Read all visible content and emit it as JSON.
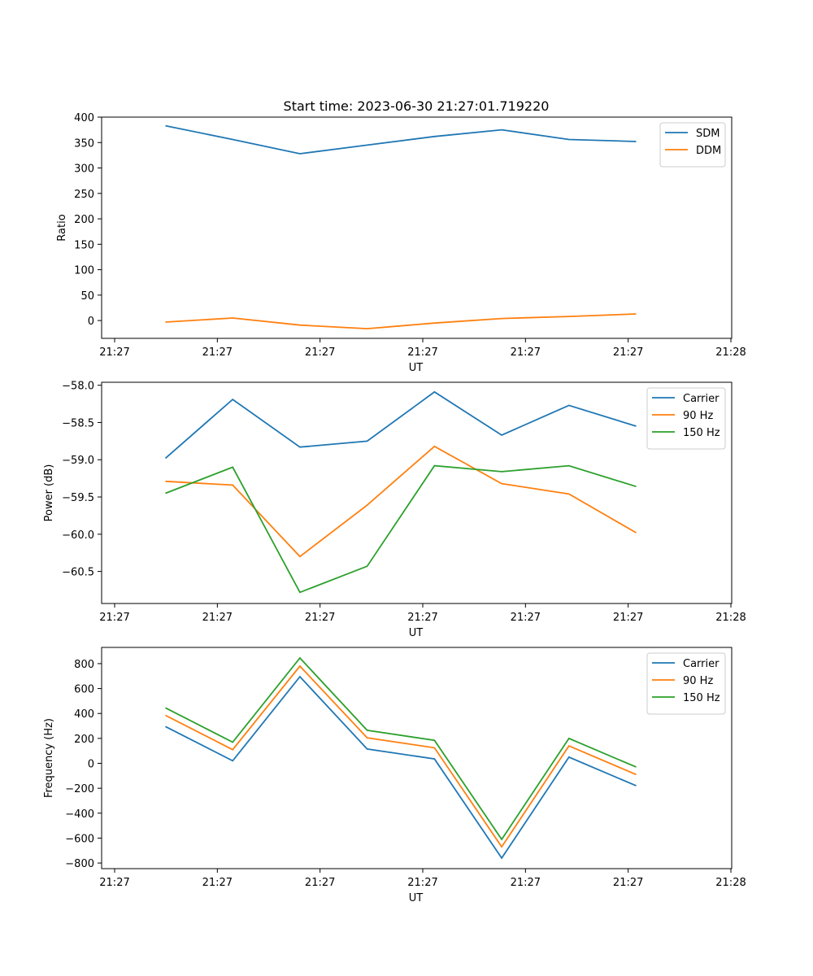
{
  "figure_title": "Start time: 2023-06-30 21:27:01.719220",
  "colors": {
    "blue": "#1f77b4",
    "orange": "#ff7f0e",
    "green": "#2ca02c"
  },
  "chart_data": [
    {
      "type": "line",
      "xlabel": "UT",
      "ylabel": "Ratio",
      "x_tick_labels": [
        "21:27",
        "21:27",
        "21:27",
        "21:27",
        "21:27",
        "21:27",
        "21:27"
      ],
      "x_tick_extra": "21:28",
      "x": [
        1,
        2,
        3,
        4,
        5,
        6,
        7,
        8
      ],
      "ylim": [
        -35,
        400
      ],
      "yticks": [
        0,
        50,
        100,
        150,
        200,
        250,
        300,
        350,
        400
      ],
      "legend_position": "top-right",
      "series": [
        {
          "name": "SDM",
          "color": "#1f77b4",
          "values": [
            383,
            356,
            328,
            345,
            362,
            375,
            356,
            352
          ]
        },
        {
          "name": "DDM",
          "color": "#ff7f0e",
          "values": [
            -3,
            5,
            -9,
            -16,
            -5,
            4,
            8,
            13
          ]
        }
      ]
    },
    {
      "type": "line",
      "xlabel": "UT",
      "ylabel": "Power (dB)",
      "x_tick_labels": [
        "21:27",
        "21:27",
        "21:27",
        "21:27",
        "21:27",
        "21:27",
        "21:27"
      ],
      "x_tick_extra": "21:28",
      "x": [
        1,
        2,
        3,
        4,
        5,
        6,
        7,
        8
      ],
      "ylim": [
        -60.93,
        -57.96
      ],
      "yticks": [
        -58.0,
        -58.5,
        -59.0,
        -59.5,
        -60.0,
        -60.5
      ],
      "yticks_labels": [
        "−58.0",
        "−58.5",
        "−59.0",
        "−59.5",
        "−60.0",
        "−60.5"
      ],
      "legend_position": "top-right",
      "series": [
        {
          "name": "Carrier",
          "color": "#1f77b4",
          "values": [
            -58.98,
            -58.19,
            -58.83,
            -58.75,
            -58.09,
            -58.67,
            -58.27,
            -58.55
          ]
        },
        {
          "name": "90 Hz",
          "color": "#ff7f0e",
          "values": [
            -59.29,
            -59.34,
            -60.3,
            -59.61,
            -58.82,
            -59.32,
            -59.46,
            -59.98
          ]
        },
        {
          "name": "150 Hz",
          "color": "#2ca02c",
          "values": [
            -59.45,
            -59.1,
            -60.78,
            -60.43,
            -59.08,
            -59.16,
            -59.08,
            -59.36
          ]
        }
      ]
    },
    {
      "type": "line",
      "xlabel": "UT",
      "ylabel": "Frequency (Hz)",
      "x_tick_labels": [
        "21:27",
        "21:27",
        "21:27",
        "21:27",
        "21:27",
        "21:27",
        "21:27"
      ],
      "x_tick_extra": "21:28",
      "x": [
        1,
        2,
        3,
        4,
        5,
        6,
        7,
        8
      ],
      "ylim": [
        -845,
        930
      ],
      "yticks": [
        800,
        600,
        400,
        200,
        0,
        -200,
        -400,
        -600,
        -800
      ],
      "yticks_labels": [
        "800",
        "600",
        "400",
        "200",
        "0",
        "−200",
        "−400",
        "−600",
        "−800"
      ],
      "legend_position": "top-right",
      "series": [
        {
          "name": "Carrier",
          "color": "#1f77b4",
          "values": [
            295,
            20,
            695,
            115,
            35,
            -760,
            50,
            -180
          ]
        },
        {
          "name": "90 Hz",
          "color": "#ff7f0e",
          "values": [
            385,
            110,
            780,
            205,
            125,
            -670,
            140,
            -90
          ]
        },
        {
          "name": "150 Hz",
          "color": "#2ca02c",
          "values": [
            445,
            170,
            845,
            265,
            185,
            -610,
            200,
            -30
          ]
        }
      ]
    }
  ]
}
